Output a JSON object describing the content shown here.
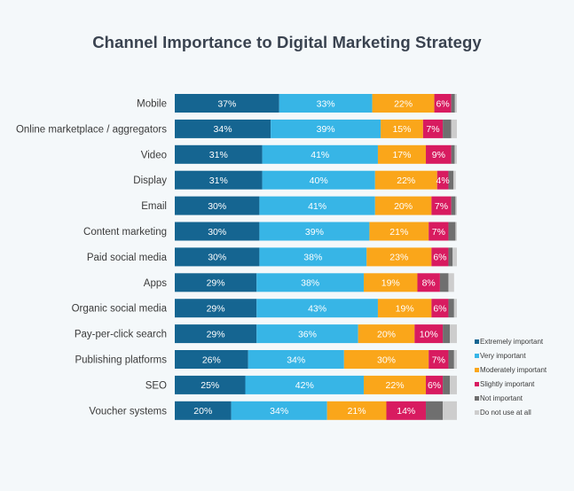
{
  "chart_data": {
    "type": "bar",
    "orientation": "horizontal",
    "stacked": true,
    "title": "Channel Importance to Digital Marketing Strategy",
    "categories": [
      "Mobile",
      "Online marketplace / aggregators",
      "Video",
      "Display",
      "Email",
      "Content marketing",
      "Paid social media",
      "Apps",
      "Organic social media",
      "Pay-per-click search",
      "Publishing platforms",
      "SEO",
      "Voucher systems"
    ],
    "series": [
      {
        "name": "Extremely important",
        "color": "#156591",
        "values": [
          37,
          34,
          31,
          31,
          30,
          30,
          30,
          29,
          29,
          29,
          26,
          25,
          20
        ],
        "labels": [
          "37%",
          "34%",
          "31%",
          "31%",
          "30%",
          "30%",
          "30%",
          "29%",
          "29%",
          "29%",
          "26%",
          "25%",
          "20%"
        ]
      },
      {
        "name": "Very important",
        "color": "#37b5e6",
        "values": [
          33,
          39,
          41,
          40,
          41,
          39,
          38,
          38,
          43,
          36,
          34,
          42,
          34
        ],
        "labels": [
          "33%",
          "39%",
          "41%",
          "40%",
          "41%",
          "39%",
          "38%",
          "38%",
          "43%",
          "36%",
          "34%",
          "42%",
          "34%"
        ]
      },
      {
        "name": "Moderately important",
        "color": "#faa61a",
        "values": [
          22,
          15,
          17,
          22,
          20,
          21,
          23,
          19,
          19,
          20,
          30,
          22,
          21
        ],
        "labels": [
          "22%",
          "15%",
          "17%",
          "22%",
          "20%",
          "21%",
          "23%",
          "19%",
          "19%",
          "20%",
          "30%",
          "22%",
          "21%"
        ]
      },
      {
        "name": "Slightly important",
        "color": "#d81b60",
        "values": [
          6,
          7,
          9,
          4,
          7,
          7,
          6,
          8,
          6,
          10,
          7,
          6,
          14
        ],
        "labels": [
          "6%",
          "7%",
          "9%",
          "4%",
          "7%",
          "7%",
          "6%",
          "8%",
          "6%",
          "10%",
          "7%",
          "6%",
          "14%"
        ]
      },
      {
        "name": "Not important",
        "color": "#6f6f6f",
        "values": [
          1.3,
          3,
          1.2,
          1.8,
          1.5,
          2.5,
          1.5,
          3,
          2,
          2.5,
          2,
          2.5,
          6
        ],
        "labels": []
      },
      {
        "name": "Do not use at all",
        "color": "#cdcdcd",
        "values": [
          0.7,
          2,
          0.8,
          0.8,
          0.5,
          0.5,
          1.5,
          2,
          1,
          2.5,
          1,
          2.5,
          5
        ],
        "labels": []
      }
    ],
    "xlim": [
      0,
      100
    ],
    "legend": "bottom-right"
  }
}
